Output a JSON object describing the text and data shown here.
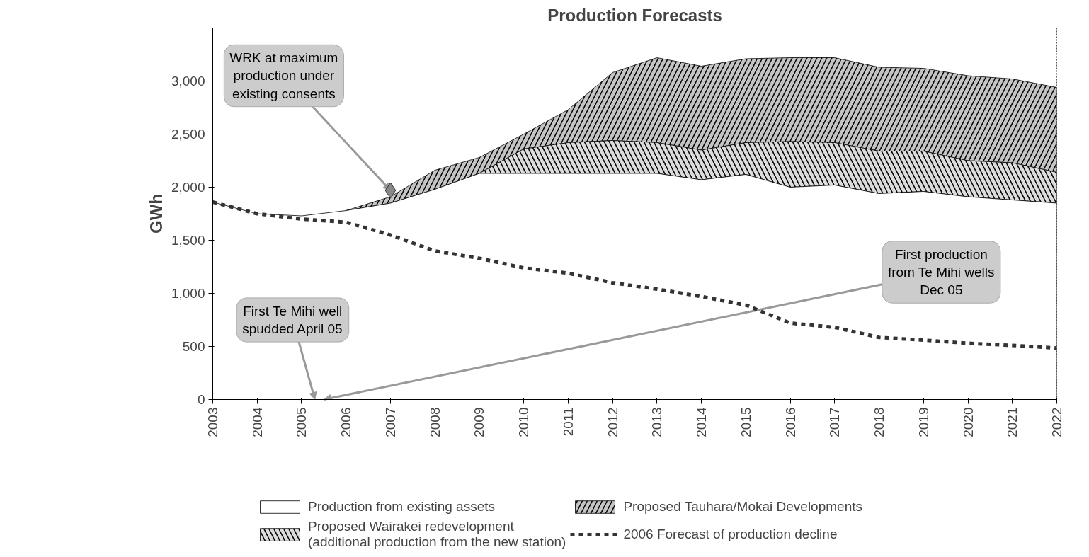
{
  "chart_data": {
    "type": "area",
    "title": "Production Forecasts",
    "ylabel": "GWh",
    "stacked": true,
    "x": [
      2003,
      2004,
      2005,
      2006,
      2007,
      2008,
      2009,
      2010,
      2011,
      2012,
      2013,
      2014,
      2015,
      2016,
      2017,
      2018,
      2019,
      2020,
      2021,
      2022
    ],
    "series": [
      {
        "name": "Production from existing assets",
        "color": "#ffffff",
        "values": [
          1860,
          1750,
          1730,
          1780,
          1850,
          1980,
          2130,
          2130,
          2130,
          2130,
          2130,
          2070,
          2120,
          2000,
          2020,
          1940,
          1960,
          1910,
          1880,
          1850
        ]
      },
      {
        "name": "Proposed Wairakei redevelopment\n(additional production from the new station)",
        "color": "#dcdcdc",
        "values": [
          null,
          null,
          null,
          null,
          null,
          null,
          0,
          230,
          290,
          310,
          290,
          280,
          300,
          430,
          400,
          400,
          380,
          340,
          350,
          290
        ]
      },
      {
        "name": "Proposed Tauhara/Mokai Developments",
        "color": "#c4c4c4",
        "values": [
          null,
          null,
          null,
          0,
          60,
          180,
          150,
          140,
          310,
          640,
          800,
          790,
          790,
          790,
          800,
          790,
          780,
          800,
          790,
          800
        ]
      },
      {
        "name": "2006 Forecast of production decline",
        "type": "line",
        "color": "#333333",
        "line_style": "dashed",
        "values": [
          1860,
          1750,
          1700,
          1670,
          1550,
          1400,
          1330,
          1240,
          1190,
          1100,
          1040,
          970,
          890,
          720,
          680,
          585,
          560,
          530,
          510,
          485
        ]
      },
      {
        "type": "scatter",
        "color": "#888888",
        "marker": "diamond",
        "x": [
          2007
        ],
        "values": [
          1970
        ]
      }
    ],
    "xlim": [
      2003,
      2022
    ],
    "xticks": [
      2003,
      2004,
      2005,
      2006,
      2007,
      2008,
      2009,
      2010,
      2011,
      2012,
      2013,
      2014,
      2015,
      2016,
      2017,
      2018,
      2019,
      2020,
      2021,
      2022
    ],
    "ylim": [
      0,
      3500
    ],
    "yticks": [
      0,
      500,
      {
        "value": 1000,
        "label": "1,000"
      },
      {
        "value": 1500,
        "label": "1,500"
      },
      {
        "value": 2000,
        "label": "2,000"
      },
      {
        "value": 2500,
        "label": "2,500"
      },
      {
        "value": 3000,
        "label": "3,000"
      },
      {
        "value": 3500,
        "label": null
      }
    ],
    "grid": false,
    "legend": "bottom",
    "annotations": [
      {
        "text": "WRK at maximum\nproduction under\nexisting consents",
        "x": 2007,
        "y": 1970
      },
      {
        "text": "First Te Mihi well\nspudded April 05",
        "x": 2005.3,
        "y": 0
      },
      {
        "text": "First production\nfrom Te Mihi wells\nDec 05",
        "x": 2005.5,
        "y": 0
      }
    ]
  }
}
